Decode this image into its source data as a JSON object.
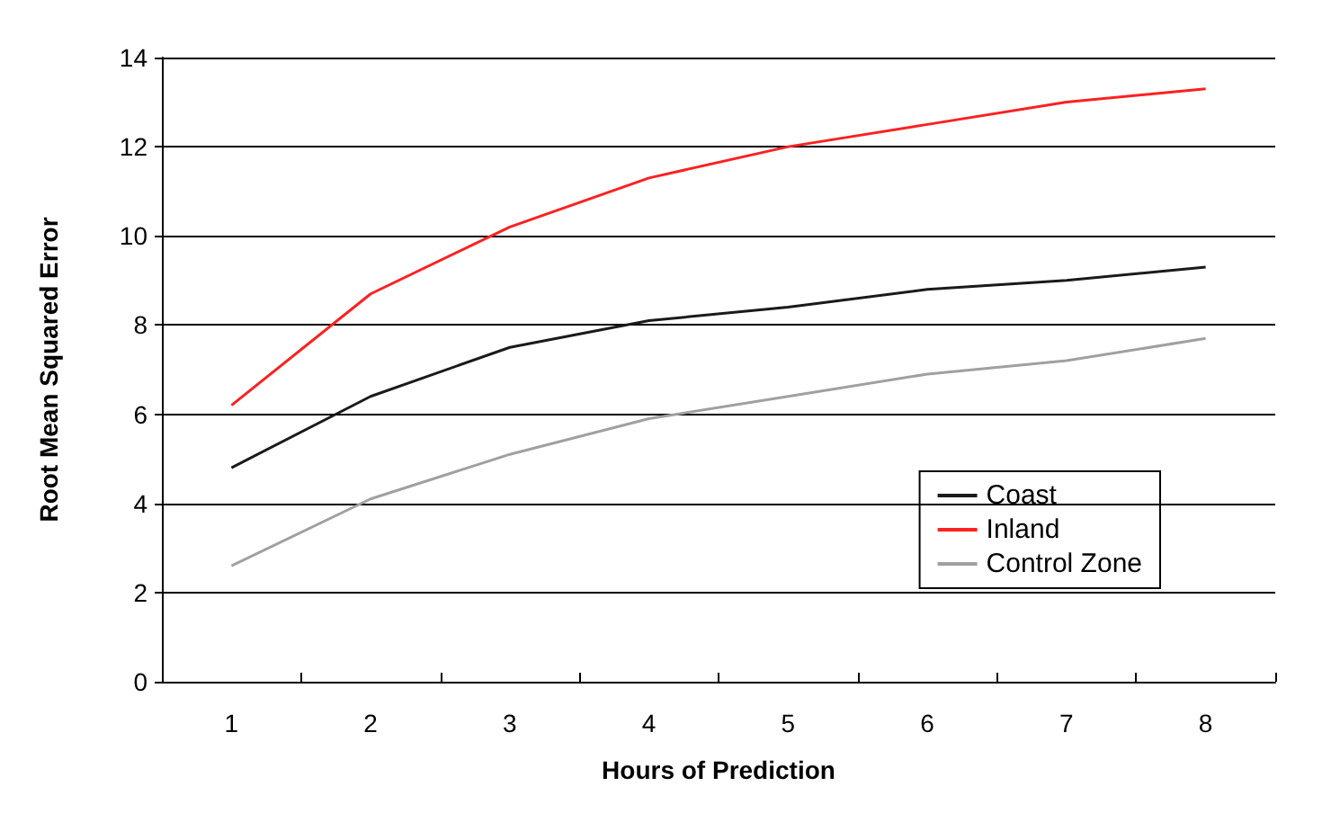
{
  "chart_data": {
    "type": "line",
    "xlabel": "Hours of Prediction",
    "ylabel": "Root Mean Squared Error",
    "categories": [
      "1",
      "2",
      "3",
      "4",
      "5",
      "6",
      "7",
      "8"
    ],
    "series": [
      {
        "name": "Coast",
        "color": "#1a1a1a",
        "values": [
          4.8,
          6.4,
          7.5,
          8.1,
          8.4,
          8.8,
          9.0,
          9.3
        ]
      },
      {
        "name": "Inland",
        "color": "#ff2020",
        "values": [
          6.2,
          8.7,
          10.2,
          11.3,
          12.0,
          12.5,
          13.0,
          13.3
        ]
      },
      {
        "name": "Control Zone",
        "color": "#a0a0a0",
        "values": [
          2.6,
          4.1,
          5.1,
          5.9,
          6.4,
          6.9,
          7.2,
          7.7
        ]
      }
    ],
    "ylim": [
      0,
      14
    ],
    "yticks": [
      0,
      2,
      4,
      6,
      8,
      10,
      12,
      14
    ],
    "grid": "y",
    "legend": "bottom right",
    "marker": "none",
    "line_style": "solid"
  }
}
